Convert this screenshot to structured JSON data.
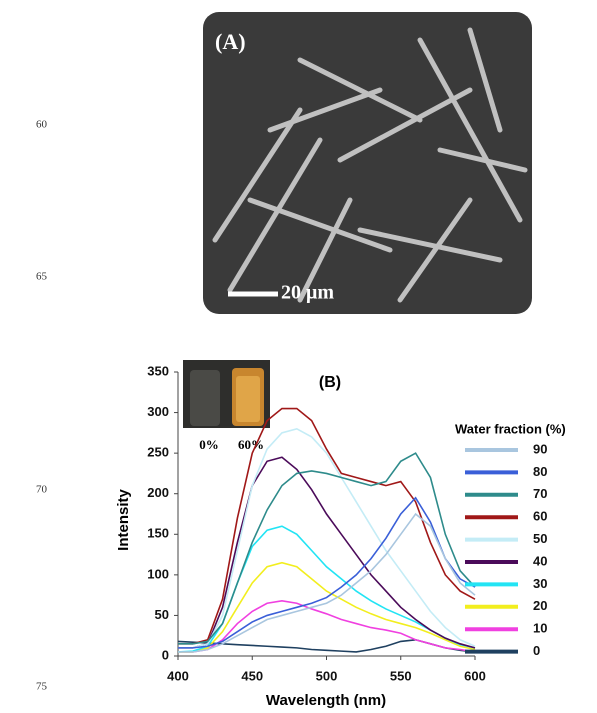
{
  "line_numbers": [
    "60",
    "65",
    "70",
    "75"
  ],
  "figure_a": {
    "label": "(A)",
    "scale_bar": "20 μm"
  },
  "chart_data": {
    "type": "line",
    "title": "(B)",
    "x_label": "Wavelength (nm)",
    "y_label": "Intensity",
    "legend_title": "Water fraction (%)",
    "inset_labels": [
      "0%",
      "60%"
    ],
    "x": [
      400,
      410,
      420,
      430,
      440,
      450,
      460,
      470,
      480,
      490,
      500,
      510,
      520,
      530,
      540,
      550,
      560,
      570,
      580,
      590,
      600
    ],
    "xlim": [
      400,
      600
    ],
    "ylim": [
      0,
      350
    ],
    "xticks": [
      400,
      450,
      500,
      550,
      600
    ],
    "yticks": [
      0,
      50,
      100,
      150,
      200,
      250,
      300,
      350
    ],
    "series": [
      {
        "name": "90",
        "color": "#a9c6df",
        "values": [
          5,
          5,
          8,
          15,
          25,
          35,
          45,
          50,
          55,
          60,
          65,
          75,
          90,
          105,
          125,
          150,
          175,
          160,
          120,
          90,
          75
        ]
      },
      {
        "name": "80",
        "color": "#3a5fd8",
        "values": [
          10,
          10,
          12,
          18,
          30,
          42,
          50,
          55,
          60,
          65,
          72,
          85,
          100,
          120,
          145,
          175,
          195,
          165,
          120,
          95,
          85
        ]
      },
      {
        "name": "70",
        "color": "#2e8b8b",
        "values": [
          15,
          15,
          18,
          40,
          90,
          140,
          180,
          210,
          225,
          228,
          225,
          220,
          215,
          210,
          215,
          240,
          250,
          220,
          150,
          105,
          85
        ]
      },
      {
        "name": "60",
        "color": "#a01818",
        "values": [
          15,
          15,
          20,
          70,
          170,
          250,
          290,
          305,
          305,
          290,
          255,
          225,
          220,
          215,
          210,
          215,
          190,
          140,
          100,
          80,
          70
        ]
      },
      {
        "name": "50",
        "color": "#c4ecf6",
        "values": [
          10,
          10,
          15,
          50,
          130,
          210,
          255,
          275,
          280,
          270,
          250,
          220,
          190,
          160,
          130,
          105,
          80,
          55,
          35,
          20,
          12
        ]
      },
      {
        "name": "40",
        "color": "#4b0b5a",
        "values": [
          10,
          10,
          15,
          60,
          140,
          210,
          240,
          245,
          230,
          205,
          175,
          150,
          125,
          100,
          80,
          60,
          45,
          32,
          22,
          15,
          10
        ]
      },
      {
        "name": "30",
        "color": "#22e4f4",
        "values": [
          5,
          6,
          12,
          40,
          90,
          135,
          155,
          160,
          150,
          130,
          110,
          95,
          80,
          68,
          58,
          50,
          42,
          32,
          22,
          14,
          10
        ]
      },
      {
        "name": "20",
        "color": "#f2ee1e",
        "values": [
          5,
          5,
          10,
          30,
          60,
          90,
          110,
          115,
          110,
          95,
          80,
          70,
          60,
          52,
          45,
          40,
          35,
          28,
          20,
          12,
          8
        ]
      },
      {
        "name": "10",
        "color": "#f040e0",
        "values": [
          5,
          5,
          8,
          20,
          40,
          55,
          65,
          68,
          65,
          58,
          52,
          45,
          40,
          35,
          32,
          28,
          20,
          15,
          10,
          8,
          5
        ]
      },
      {
        "name": "0",
        "color": "#1f4060",
        "values": [
          18,
          17,
          16,
          15,
          14,
          13,
          12,
          11,
          10,
          8,
          7,
          6,
          5,
          8,
          12,
          18,
          20,
          15,
          10,
          7,
          5
        ]
      }
    ]
  }
}
